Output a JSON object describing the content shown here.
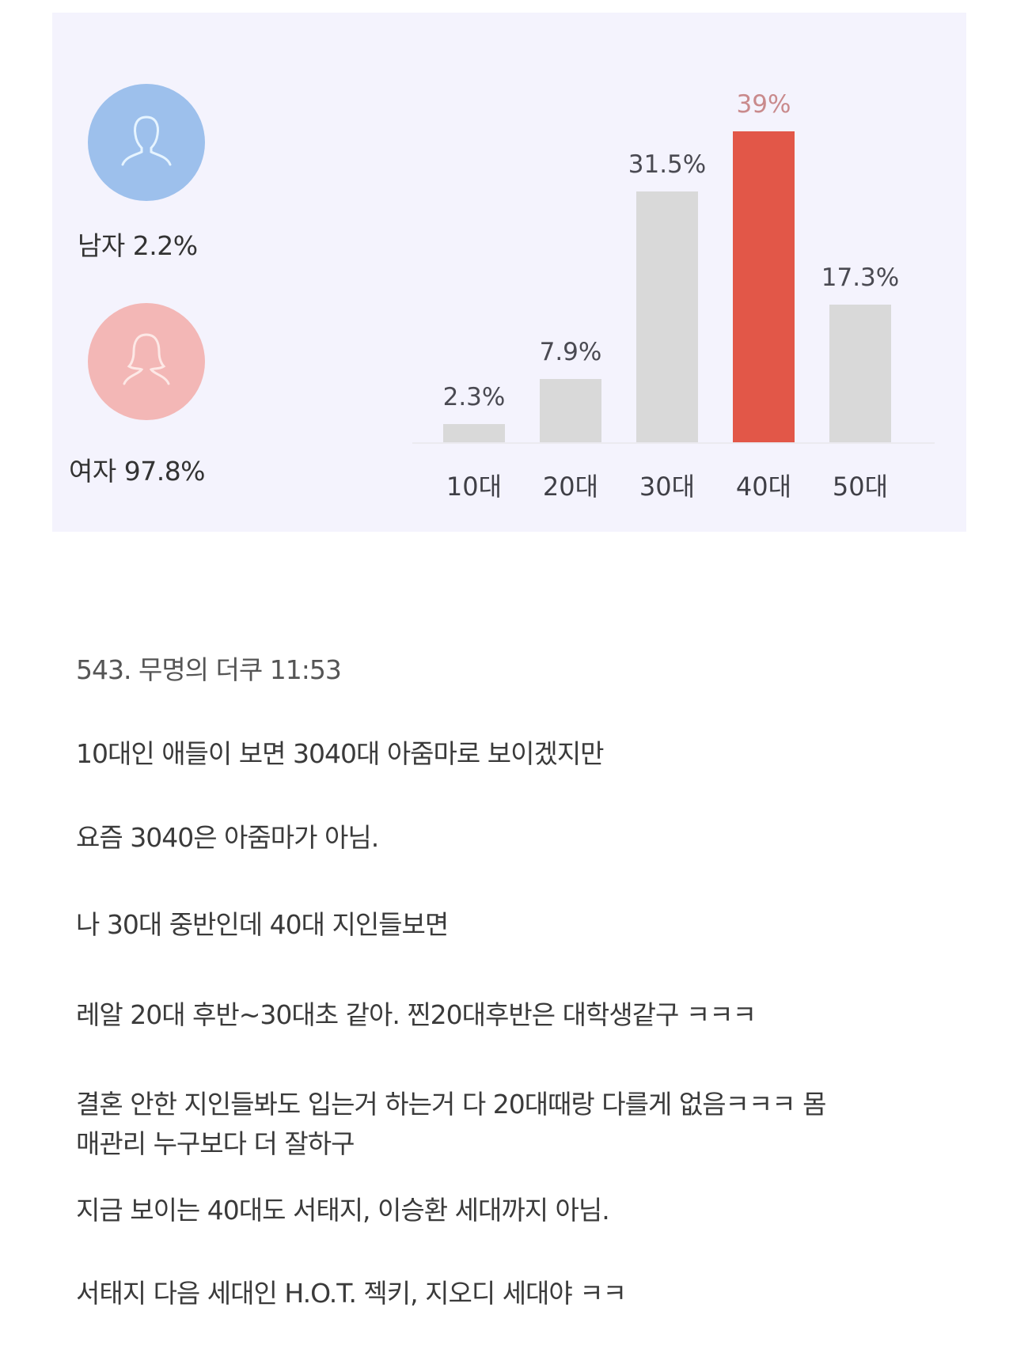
{
  "gender": {
    "male": {
      "label": "남자 2.2%",
      "icon": "male-user-icon",
      "color": "#9dc0ec"
    },
    "female": {
      "label": "여자 97.8%",
      "icon": "female-user-icon",
      "color": "#f3b7b6"
    }
  },
  "chart_data": {
    "type": "bar",
    "title": "",
    "xlabel": "",
    "ylabel": "",
    "categories": [
      "10대",
      "20대",
      "30대",
      "40대",
      "50대"
    ],
    "values": [
      2.3,
      7.9,
      31.5,
      39,
      17.3
    ],
    "value_labels": [
      "2.3%",
      "7.9%",
      "31.5%",
      "39%",
      "17.3%"
    ],
    "highlight_index": 3,
    "colors": {
      "default": "#d9d9d9",
      "highlight": "#e25748"
    },
    "ylim": [
      0,
      39
    ],
    "grid": false,
    "legend": null
  },
  "comment": {
    "header": "543. 무명의 더쿠 11:53",
    "lines": [
      "10대인 애들이 보면 3040대 아줌마로 보이겠지만",
      "요즘 3040은 아줌마가 아님.",
      "나 30대 중반인데 40대 지인들보면",
      "레알 20대 후반~30대초 같아. 찐20대후반은 대학생같구 ㅋㅋㅋ",
      "결혼 안한 지인들봐도 입는거 하는거 다 20대때랑 다를게 없음ㅋㅋㅋ 몸",
      "매관리 누구보다 더 잘하구",
      "지금 보이는 40대도 서태지, 이승환 세대까지 아님.",
      "서태지 다음 세대인 H.O.T. 젝키, 지오디 세대야 ㅋㅋ"
    ]
  }
}
